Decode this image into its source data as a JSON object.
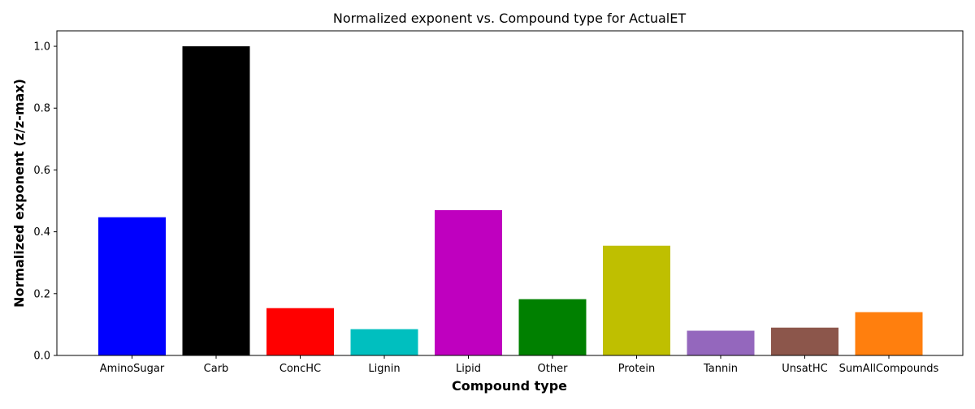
{
  "chart_data": {
    "type": "bar",
    "title": "Normalized exponent vs. Compound type for ActualET",
    "xlabel": "Compound type",
    "ylabel": "Normalized exponent (z/z-max)",
    "ylim": [
      0,
      1.05
    ],
    "yticks": [
      "0.0",
      "0.2",
      "0.4",
      "0.6",
      "0.8",
      "1.0"
    ],
    "categories": [
      "AminoSugar",
      "Carb",
      "ConcHC",
      "Lignin",
      "Lipid",
      "Other",
      "Protein",
      "Tannin",
      "UnsatHC",
      "SumAllCompounds"
    ],
    "values": [
      0.447,
      1.0,
      0.153,
      0.085,
      0.47,
      0.182,
      0.355,
      0.08,
      0.09,
      0.14
    ],
    "colors": [
      "#0000ff",
      "#000000",
      "#ff0000",
      "#00bfbf",
      "#bf00bf",
      "#008000",
      "#bfbf00",
      "#9467bd",
      "#8c564b",
      "#ff7f0e"
    ],
    "grid": false,
    "legend": "none"
  }
}
